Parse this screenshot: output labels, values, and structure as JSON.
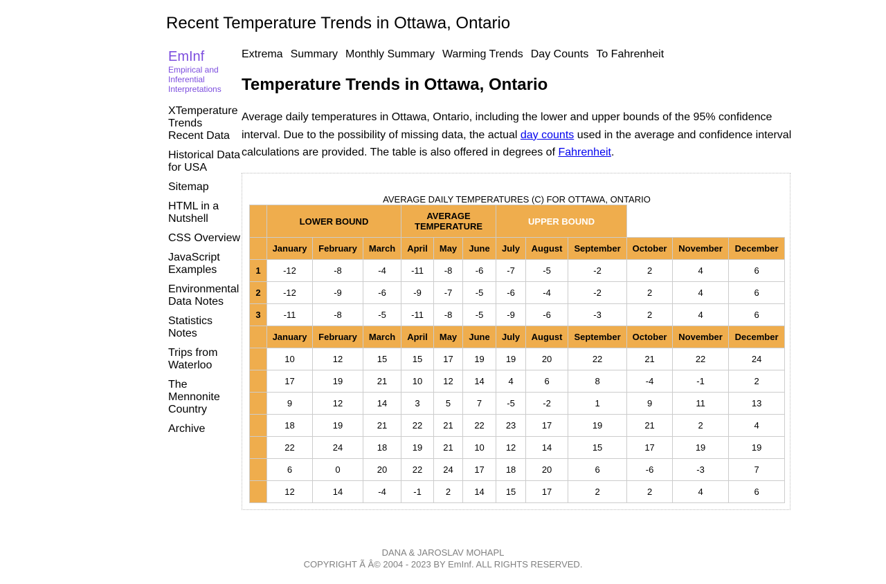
{
  "site_title": "Recent Temperature Trends in Ottawa, Ontario",
  "brand": {
    "name": "EmInf",
    "tagline": "Empirical and Inferential Interpretations"
  },
  "sidebar": {
    "items": [
      {
        "label": "XTemperature Trends"
      },
      {
        "label": "Recent Data"
      },
      {
        "label": "Historical Data for USA"
      },
      {
        "label": "Sitemap"
      },
      {
        "label": "HTML in a Nutshell"
      },
      {
        "label": "CSS Overview"
      },
      {
        "label": "JavaScript Examples"
      },
      {
        "label": "Environmental Data Notes"
      },
      {
        "label": "Statistics Notes"
      },
      {
        "label": "Trips from Waterloo"
      },
      {
        "label": "The Mennonite Country"
      },
      {
        "label": "Archive"
      }
    ]
  },
  "topnav": {
    "items": [
      {
        "label": "Extrema"
      },
      {
        "label": "Summary"
      },
      {
        "label": "Monthly Summary"
      },
      {
        "label": "Warming Trends"
      },
      {
        "label": "Day Counts"
      },
      {
        "label": "To Fahrenheit"
      }
    ]
  },
  "page_heading": "Temperature Trends in Ottawa, Ontario",
  "intro": {
    "text_1": "Average daily temperatures in Ottawa, Ontario, including the lower and upper bounds of the 95% confidence interval. Due to the possibility of missing data, the actual ",
    "link_day_counts": "day counts",
    "text_2": " used in the average and confidence interval calculations are provided. The table is also offered in degrees of ",
    "link_fahrenheit": "Fahrenheit",
    "text_3": "."
  },
  "table": {
    "caption": "AVERAGE DAILY TEMPERATURES (C) FOR OTTAWA, ONTARIO",
    "bands": {
      "lower": "LOWER BOUND",
      "average": "AVERAGE TEMPERATURE",
      "upper": "UPPER BOUND"
    },
    "months": [
      "January",
      "February",
      "March",
      "April",
      "May",
      "June",
      "July",
      "August",
      "September",
      "October",
      "November",
      "December"
    ],
    "rows_a": [
      {
        "label": "1",
        "values": [
          "-12",
          "-8",
          "-4",
          "-11",
          "-8",
          "-6",
          "-7",
          "-5",
          "-2",
          "2",
          "4",
          "6"
        ]
      },
      {
        "label": "2",
        "values": [
          "-12",
          "-9",
          "-6",
          "-9",
          "-7",
          "-5",
          "-6",
          "-4",
          "-2",
          "2",
          "4",
          "6"
        ]
      },
      {
        "label": "3",
        "values": [
          "-11",
          "-8",
          "-5",
          "-11",
          "-8",
          "-5",
          "-9",
          "-6",
          "-3",
          "2",
          "4",
          "6"
        ]
      }
    ],
    "rows_b": [
      {
        "label": "",
        "values": [
          "10",
          "12",
          "15",
          "15",
          "17",
          "19",
          "19",
          "20",
          "22",
          "21",
          "22",
          "24"
        ]
      },
      {
        "label": "",
        "values": [
          "17",
          "19",
          "21",
          "10",
          "12",
          "14",
          "4",
          "6",
          "8",
          "-4",
          "-1",
          "2"
        ]
      },
      {
        "label": "",
        "values": [
          "9",
          "12",
          "14",
          "3",
          "5",
          "7",
          "-5",
          "-2",
          "1",
          "9",
          "11",
          "13"
        ]
      },
      {
        "label": "",
        "values": [
          "18",
          "19",
          "21",
          "22",
          "21",
          "22",
          "23",
          "17",
          "19",
          "21",
          "2",
          "4"
        ]
      },
      {
        "label": "",
        "values": [
          "22",
          "24",
          "18",
          "19",
          "21",
          "10",
          "12",
          "14",
          "15",
          "17",
          "19",
          "19"
        ]
      },
      {
        "label": "",
        "values": [
          "6",
          "0",
          "20",
          "22",
          "24",
          "17",
          "18",
          "20",
          "6",
          "-6",
          "-3",
          "7"
        ]
      },
      {
        "label": "",
        "values": [
          "12",
          "14",
          "-4",
          "-1",
          "2",
          "14",
          "15",
          "17",
          "2",
          "2",
          "4",
          "6"
        ]
      }
    ]
  },
  "footer": {
    "line1": "DANA & JAROSLAV MOHAPL",
    "line2": "COPYRIGHT Ã   Â© 2004 - 2023 BY EmInf. ALL RIGHTS RESERVED."
  },
  "colors": {
    "header_bg": "#efad4d",
    "brand": "#7c4dde",
    "link": "#0000ee",
    "footer_text": "#808080"
  }
}
